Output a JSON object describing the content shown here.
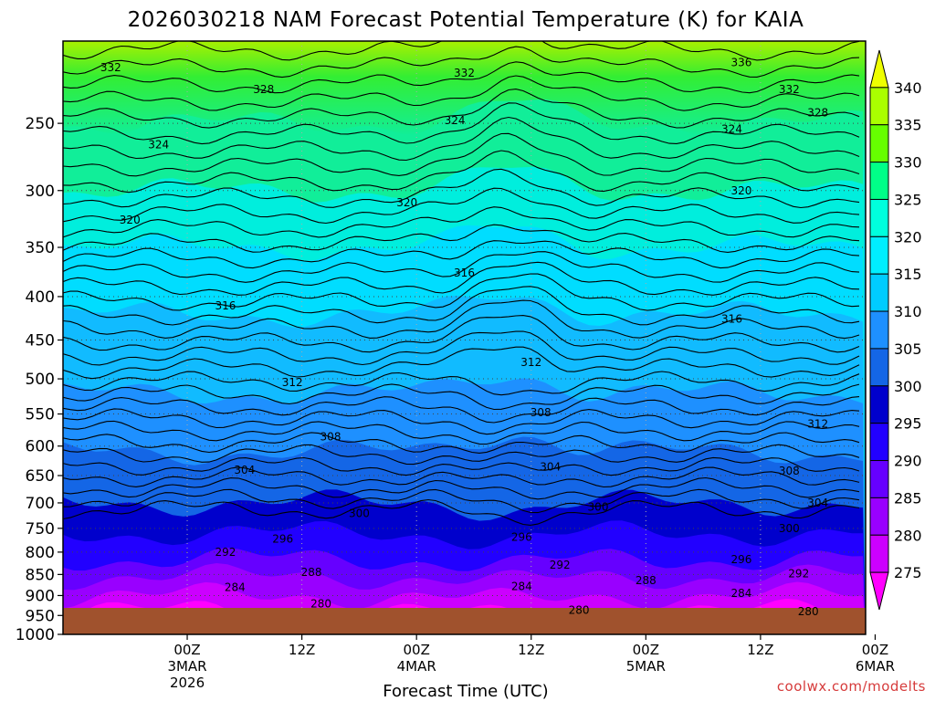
{
  "chart_data": {
    "type": "heatmap",
    "title": "2026030218 NAM Forecast Potential Temperature (K) for KAIA",
    "xlabel": "Forecast Time (UTC)",
    "ylabel": "",
    "credit": "coolwx.com/modelts",
    "y_axis": {
      "scale": "pressure",
      "range": [
        1000,
        200
      ],
      "ticks": [
        "250",
        "300",
        "350",
        "400",
        "450",
        "500",
        "550",
        "600",
        "650",
        "700",
        "750",
        "800",
        "850",
        "900",
        "950",
        "1000"
      ]
    },
    "x_axis": {
      "range_hours": [
        -7,
        77
      ],
      "ticks": [
        {
          "hour": 6,
          "lines": [
            "00Z",
            "3MAR",
            "2026"
          ]
        },
        {
          "hour": 18,
          "lines": [
            "12Z"
          ]
        },
        {
          "hour": 30,
          "lines": [
            "00Z",
            "4MAR"
          ]
        },
        {
          "hour": 42,
          "lines": [
            "12Z"
          ]
        },
        {
          "hour": 54,
          "lines": [
            "00Z",
            "5MAR"
          ]
        },
        {
          "hour": 66,
          "lines": [
            "12Z"
          ]
        },
        {
          "hour": 78,
          "lines": [
            "00Z",
            "6MAR"
          ]
        }
      ]
    },
    "colorbar": {
      "levels": [
        "275",
        "280",
        "285",
        "290",
        "295",
        "300",
        "305",
        "310",
        "315",
        "320",
        "325",
        "330",
        "335",
        "340"
      ],
      "colors": [
        "#f0f",
        "#c0f",
        "#90f",
        "#60f",
        "#20f",
        "#00c",
        "#1466e6",
        "#1e90ff",
        "#0cf",
        "#0ef",
        "#0fd",
        "#0f8",
        "#6f0",
        "#af0",
        "#ef0"
      ]
    },
    "contour_labels": [
      {
        "text": "332",
        "x": -2,
        "p": 215
      },
      {
        "text": "328",
        "x": 14,
        "p": 228
      },
      {
        "text": "324",
        "x": 3,
        "p": 265
      },
      {
        "text": "320",
        "x": 0,
        "p": 325
      },
      {
        "text": "316",
        "x": 10,
        "p": 410
      },
      {
        "text": "312",
        "x": 17,
        "p": 505
      },
      {
        "text": "308",
        "x": 21,
        "p": 585
      },
      {
        "text": "304",
        "x": 12,
        "p": 640
      },
      {
        "text": "300",
        "x": 24,
        "p": 720
      },
      {
        "text": "296",
        "x": 16,
        "p": 772
      },
      {
        "text": "292",
        "x": 10,
        "p": 800
      },
      {
        "text": "288",
        "x": 19,
        "p": 845
      },
      {
        "text": "284",
        "x": 11,
        "p": 880
      },
      {
        "text": "280",
        "x": 20,
        "p": 920
      },
      {
        "text": "332",
        "x": 35,
        "p": 218
      },
      {
        "text": "324",
        "x": 34,
        "p": 248
      },
      {
        "text": "320",
        "x": 29,
        "p": 310
      },
      {
        "text": "316",
        "x": 35,
        "p": 375
      },
      {
        "text": "312",
        "x": 42,
        "p": 478
      },
      {
        "text": "308",
        "x": 43,
        "p": 548
      },
      {
        "text": "304",
        "x": 44,
        "p": 635
      },
      {
        "text": "300",
        "x": 49,
        "p": 708
      },
      {
        "text": "296",
        "x": 41,
        "p": 768
      },
      {
        "text": "292",
        "x": 45,
        "p": 828
      },
      {
        "text": "288",
        "x": 54,
        "p": 864
      },
      {
        "text": "284",
        "x": 41,
        "p": 878
      },
      {
        "text": "280",
        "x": 47,
        "p": 937
      },
      {
        "text": "336",
        "x": 64,
        "p": 212
      },
      {
        "text": "332",
        "x": 69,
        "p": 228
      },
      {
        "text": "328",
        "x": 72,
        "p": 243
      },
      {
        "text": "324",
        "x": 63,
        "p": 254
      },
      {
        "text": "320",
        "x": 64,
        "p": 300
      },
      {
        "text": "316",
        "x": 63,
        "p": 425
      },
      {
        "text": "312",
        "x": 72,
        "p": 565
      },
      {
        "text": "308",
        "x": 69,
        "p": 642
      },
      {
        "text": "304",
        "x": 72,
        "p": 700
      },
      {
        "text": "300",
        "x": 69,
        "p": 750
      },
      {
        "text": "296",
        "x": 64,
        "p": 816
      },
      {
        "text": "292",
        "x": 70,
        "p": 848
      },
      {
        "text": "284",
        "x": 64,
        "p": 895
      },
      {
        "text": "280",
        "x": 71,
        "p": 940
      }
    ]
  }
}
